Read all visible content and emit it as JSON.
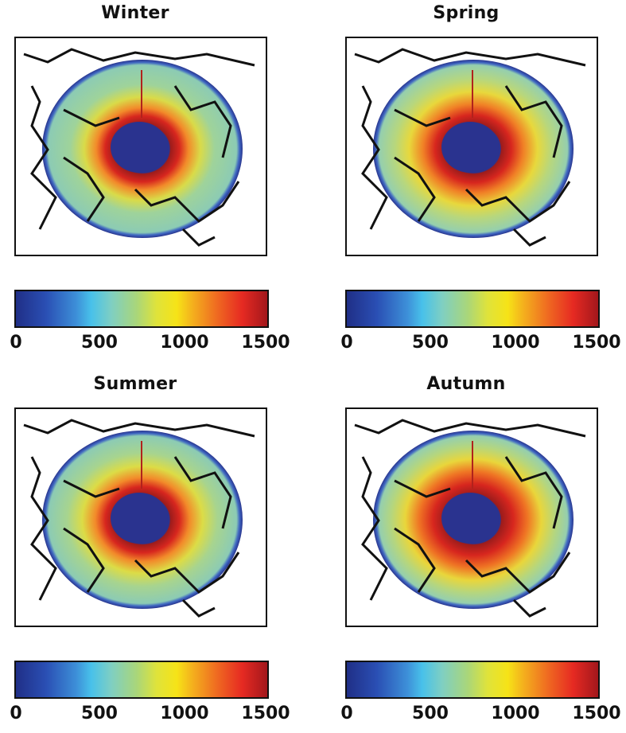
{
  "chart_data": [
    {
      "type": "heatmap",
      "title": "Winter",
      "colorbar": {
        "ticks": [
          "0",
          "500",
          "1000",
          "1500"
        ],
        "range": [
          0,
          1500
        ],
        "colormap": "jet"
      }
    },
    {
      "type": "heatmap",
      "title": "Spring",
      "colorbar": {
        "ticks": [
          "0",
          "500",
          "1000",
          "1500"
        ],
        "range": [
          0,
          1500
        ],
        "colormap": "jet"
      }
    },
    {
      "type": "heatmap",
      "title": "Summer",
      "colorbar": {
        "ticks": [
          "0",
          "500",
          "1000",
          "1500"
        ],
        "range": [
          0,
          1500
        ],
        "colormap": "jet"
      }
    },
    {
      "type": "heatmap",
      "title": "Autumn",
      "colorbar": {
        "ticks": [
          "0",
          "500",
          "1000",
          "1500"
        ],
        "range": [
          0,
          1500
        ],
        "colormap": "jet"
      }
    }
  ]
}
